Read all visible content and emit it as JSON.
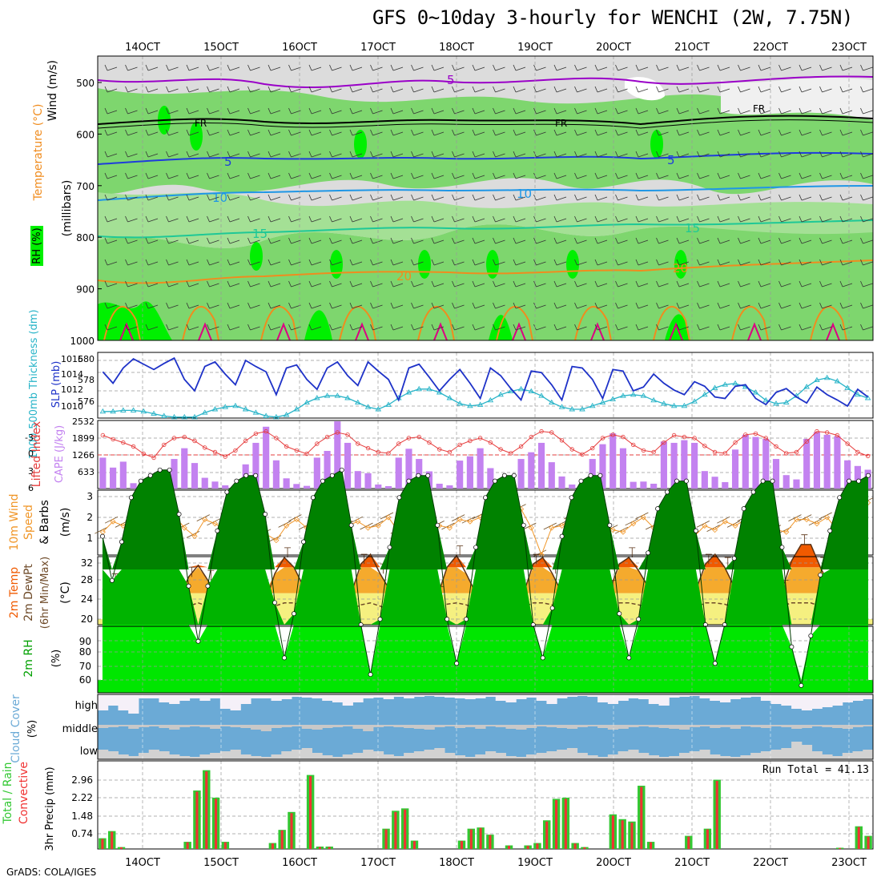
{
  "title": "GFS 0~10day 3-hourly for WENCHI (2W, 7.75N)",
  "credit": "GrADS: COLA/IGES",
  "dates": [
    "14OCT",
    "15OCT",
    "16OCT",
    "17OCT",
    "18OCT",
    "19OCT",
    "20OCT",
    "21OCT",
    "22OCT",
    "23OCT"
  ],
  "colors": {
    "rh_light": "#c8c8c8",
    "rh_mid": "#7ed66e",
    "rh_high": "#00f000",
    "temp_purple": "#9a00c8",
    "temp_blue": "#1e3cdc",
    "temp_cyan": "#1e96e6",
    "temp_teal": "#1ec896",
    "temp_orange": "#f08c1e",
    "temp_magenta": "#dc0082",
    "slp": "#1e32c8",
    "thick": "#28b4c8",
    "cape": "#c382f0",
    "li": "#e63c3c",
    "wind10": "#f09628",
    "temp_dark": "#f05a00",
    "rh_dark": "#008200",
    "cloud": "#6baad6",
    "precip_total": "#32c832",
    "precip_conv": "#f03232"
  },
  "panels": {
    "upper": {
      "ylabel_wind": "Wind (m/s)",
      "ylabel_temp": "Temperature (°C)",
      "ylabel_rh": "RH (%)",
      "ylabel_mb": "(millibars)",
      "levels": [
        "500",
        "600",
        "700",
        "800",
        "900",
        "1000"
      ],
      "labels": {
        "fr": "FR",
        "t5": "5",
        "t10": "10",
        "t15": "15",
        "t20": "20"
      }
    },
    "slp": {
      "label_thick": "1000-500mb Thickness (dm)",
      "label_slp": "SLP (mb)",
      "left_ticks": [
        "580",
        "578",
        "576"
      ],
      "right_ticks": [
        "1016",
        "1014",
        "1012",
        "1010"
      ]
    },
    "cape": {
      "label_li": "Lifted Index",
      "label_cape": "CAPE (J/kg)",
      "left_ticks": [
        "-3",
        "0",
        "3",
        "6"
      ],
      "right_ticks": [
        "2532",
        "1899",
        "1266",
        "633"
      ]
    },
    "wind10": {
      "label1": "10m Wind",
      "label2": "Speed",
      "label3": "& Barbs",
      "units": "(m/s)",
      "ticks": [
        "3",
        "2",
        "1"
      ]
    },
    "temp2m": {
      "label1": "2m Temp",
      "label2": "2m DewPt",
      "label3": "(6hr Min/Max)",
      "units": "(°C)",
      "ticks": [
        "32",
        "28",
        "24",
        "20"
      ]
    },
    "rh2m": {
      "label": "2m RH",
      "units": "(%)",
      "ticks": [
        "90",
        "80",
        "70",
        "60"
      ]
    },
    "cloud": {
      "label": "Cloud Cover",
      "units": "(%)",
      "levels": [
        "high",
        "middle",
        "low"
      ]
    },
    "precip": {
      "label_total": "Total / Rain",
      "label_conv": "Convective",
      "label_units": "3hr Precip (mm)",
      "ticks": [
        "2.96",
        "2.22",
        "1.48",
        "0.74"
      ],
      "run_total": "Run Total = 41.13"
    }
  },
  "chart_data": [
    {
      "type": "line",
      "panel": "slp",
      "title": "",
      "series": [
        {
          "name": "SLP (mb)",
          "x": "3-hourly from 13OCT 18Z",
          "values": [
            1014.5,
            1013.0,
            1015.0,
            1016.2,
            1015.5,
            1014.8,
            1015.6,
            1016.3,
            1013.5,
            1012.0,
            1015.2,
            1015.8,
            1014.2,
            1012.8,
            1016.0,
            1015.2,
            1014.5,
            1011.5,
            1015.0,
            1015.4,
            1013.5,
            1012.2,
            1015.0,
            1015.8,
            1014.0,
            1012.7,
            1015.8,
            1014.6,
            1013.5,
            1010.8,
            1015.0,
            1015.5,
            1013.8,
            1012.0,
            1013.5,
            1014.8,
            1013.0,
            1011.0,
            1015.0,
            1014.0,
            1012.3,
            1010.8,
            1014.6,
            1014.4,
            1012.8,
            1010.8,
            1015.2,
            1015.0,
            1013.5,
            1011.0,
            1014.8,
            1014.6,
            1012.0,
            1012.5,
            1014.2,
            1013.0,
            1012.1,
            1011.5,
            1013.2,
            1012.6,
            1011.2,
            1011.0,
            1012.6,
            1012.8,
            1011.0,
            1010.2,
            1011.8,
            1012.3,
            1011.2,
            1010.4,
            1012.5,
            1011.5,
            1010.8,
            1010.0,
            1012.2,
            1011.2
          ]
        },
        {
          "name": "1000-500mb Thickness (dm)",
          "x": "3-hourly from 13OCT 18Z",
          "values": [
            575.8,
            575.8,
            575.9,
            575.9,
            575.8,
            575.6,
            575.4,
            575.3,
            575.3,
            575.3,
            575.7,
            576.0,
            576.2,
            576.3,
            576.0,
            575.7,
            575.4,
            575.3,
            575.5,
            576.0,
            576.6,
            577.0,
            577.2,
            577.2,
            577.0,
            576.6,
            576.2,
            576.0,
            576.4,
            577.0,
            577.5,
            577.8,
            577.8,
            577.5,
            577.0,
            576.5,
            576.3,
            576.4,
            576.8,
            577.3,
            577.6,
            577.8,
            577.6,
            577.2,
            576.6,
            576.2,
            576.0,
            576.0,
            576.3,
            576.6,
            576.9,
            577.2,
            577.3,
            577.2,
            576.8,
            576.5,
            576.3,
            576.3,
            576.7,
            577.3,
            577.9,
            578.2,
            578.3,
            578.0,
            577.5,
            576.8,
            576.5,
            576.6,
            577.2,
            578.0,
            578.6,
            578.8,
            578.5,
            577.9,
            577.3,
            577.0
          ]
        }
      ]
    },
    {
      "type": "bar",
      "panel": "cape",
      "title": "",
      "series": [
        {
          "name": "CAPE (J/kg)",
          "values": [
            1150,
            780,
            1000,
            200,
            100,
            40,
            180,
            1100,
            1500,
            950,
            400,
            260,
            120,
            50,
            900,
            1700,
            2300,
            1050,
            380,
            170,
            100,
            1150,
            1400,
            2500,
            1700,
            650,
            570,
            150,
            90,
            1150,
            1480,
            1100,
            640,
            180,
            120,
            1040,
            1200,
            1500,
            760,
            170,
            70,
            1100,
            1350,
            1700,
            980,
            450,
            150,
            100,
            1100,
            1650,
            2050,
            1500,
            250,
            260,
            180,
            1750,
            1700,
            1800,
            1700,
            650,
            440,
            240,
            1450,
            2000,
            1920,
            1850,
            1100,
            500,
            340,
            1850,
            2100,
            2000,
            1950,
            1050,
            840,
            700
          ]
        },
        {
          "name": "Lifted Index",
          "values": [
            -3.5,
            -2.8,
            -2.2,
            -1.5,
            -0.2,
            0.5,
            -1.8,
            -3.0,
            -3.2,
            -2.5,
            -1.3,
            -0.5,
            0.3,
            -0.8,
            -2.5,
            -3.8,
            -4.2,
            -3.0,
            -1.5,
            -0.8,
            -0.2,
            -2.0,
            -3.2,
            -4.0,
            -3.6,
            -2.0,
            -1.2,
            -0.5,
            -0.3,
            -2.0,
            -3.0,
            -3.2,
            -2.2,
            -1.0,
            -0.5,
            -1.8,
            -2.5,
            -3.0,
            -2.2,
            -1.0,
            -0.3,
            -1.5,
            -3.2,
            -4.2,
            -4.0,
            -2.6,
            -1.0,
            -0.1,
            -1.2,
            -3.0,
            -3.6,
            -3.2,
            -1.8,
            -0.8,
            -0.5,
            -2.2,
            -3.5,
            -3.2,
            -3.0,
            -1.6,
            -0.5,
            -0.3,
            -2.2,
            -3.6,
            -3.8,
            -3.0,
            -1.5,
            -0.3,
            -0.5,
            -2.4,
            -4.2,
            -4.0,
            -3.5,
            -2.0,
            -0.5,
            0.2
          ]
        }
      ]
    },
    {
      "type": "line",
      "panel": "wind10",
      "title": "",
      "series": [
        {
          "name": "10m Wind Speed (m/s)",
          "values": [
            1.3,
            1.8,
            1.6,
            1.9,
            1.8,
            1.5,
            1.7,
            2.1,
            1.5,
            1.1,
            1.9,
            1.7,
            1.4,
            1.8,
            2.3,
            2.0,
            1.2,
            0.9,
            1.6,
            1.9,
            1.5,
            1.4,
            1.8,
            1.4,
            1.6,
            1.8,
            1.5,
            1.6,
            2.0,
            1.3,
            1.9,
            1.8,
            1.2,
            1.6,
            1.5,
            1.9,
            1.8,
            2.0,
            1.7,
            1.6,
            1.9,
            2.4,
            1.5,
            0.2,
            1.5,
            1.6,
            2.0,
            1.4,
            2.5,
            1.8,
            1.4,
            1.3,
            1.7,
            2.0,
            1.5,
            1.6,
            2.9,
            1.6,
            1.1,
            1.6,
            1.4,
            1.8,
            1.6,
            1.9,
            1.2,
            1.7,
            1.4,
            1.3,
            1.9,
            1.9,
            1.7,
            2.0,
            1.4,
            2.2,
            2.6,
            2.7
          ]
        }
      ]
    },
    {
      "type": "area",
      "panel": "temp2m",
      "title": "",
      "series": [
        {
          "name": "2m Temp (°C)",
          "values": [
            24.5,
            25.5,
            24.0,
            22.5,
            22.0,
            21.5,
            21.0,
            20.2,
            23.0,
            26.5,
            28.3,
            26.0,
            23.5,
            22.3,
            21.8,
            21.5,
            21.0,
            22.5,
            27.0,
            29.5,
            28.0,
            25.0,
            23.0,
            22.0,
            21.5,
            21.0,
            24.0,
            28.5,
            30.0,
            27.0,
            24.5,
            23.0,
            22.5,
            22.0,
            21.5,
            23.5,
            28.0,
            29.8,
            27.0,
            24.0,
            23.0,
            22.5,
            22.0,
            21.5,
            24.0,
            28.5,
            29.5,
            27.0,
            24.0,
            23.0,
            22.5,
            22.0,
            22.0,
            24.5,
            28.5,
            29.5,
            27.5,
            25.0,
            23.5,
            22.8,
            22.0,
            21.5,
            24.5,
            28.5,
            30.0,
            28.0,
            25.0,
            23.5,
            22.5,
            22.0,
            22.0,
            24.5,
            29.0,
            31.5,
            31.5,
            28.0,
            25.0,
            23.5,
            22.5,
            22.0,
            21.5
          ]
        },
        {
          "name": "2m DewPt (°C)",
          "values": [
            22.0,
            22.3,
            22.0,
            21.5,
            21.0,
            20.8,
            20.5,
            20.0,
            20.8,
            22.0,
            22.5,
            22.0,
            21.5,
            21.0,
            20.7,
            20.5,
            20.5,
            20.8,
            22.0,
            22.5,
            22.5,
            22.0,
            21.5,
            21.0,
            20.8,
            20.5,
            21.5,
            22.2,
            22.5,
            22.0,
            21.5,
            21.2,
            21.0,
            20.8,
            20.8,
            21.5,
            22.3,
            22.5,
            22.2,
            21.6,
            21.3,
            21.0,
            21.0,
            21.0,
            21.8,
            22.5,
            22.5,
            22.2,
            21.8,
            21.5,
            21.2,
            21.0,
            21.0,
            21.8,
            22.5,
            22.5,
            22.2,
            21.8,
            21.5,
            21.2,
            21.0,
            21.0,
            21.8,
            22.5,
            22.5,
            22.3,
            21.8,
            21.5,
            21.2,
            21.0,
            21.0,
            22.0,
            22.5,
            22.5,
            22.5,
            22.0,
            21.8,
            21.5,
            21.2,
            21.0,
            21.0
          ]
        }
      ]
    },
    {
      "type": "area",
      "panel": "rh2m",
      "title": "",
      "series": [
        {
          "name": "2m RH (%)",
          "values": [
            86,
            78,
            85,
            93,
            96,
            97,
            98,
            98,
            90,
            77,
            67,
            77,
            87,
            94,
            96,
            97,
            97,
            90,
            74,
            64,
            72,
            85,
            93,
            96,
            97,
            98,
            88,
            70,
            61,
            71,
            84,
            93,
            96,
            97,
            97,
            88,
            71,
            63,
            71,
            84,
            93,
            96,
            97,
            97,
            88,
            70,
            64,
            73,
            86,
            93,
            96,
            97,
            97,
            88,
            72,
            64,
            71,
            83,
            91,
            94,
            96,
            96,
            87,
            70,
            63,
            70,
            82,
            91,
            94,
            96,
            96,
            84,
            66,
            59,
            68,
            79,
            87,
            93,
            96,
            96,
            97
          ]
        }
      ]
    },
    {
      "type": "bar",
      "panel": "precip",
      "title": "",
      "series": [
        {
          "name": "Total (mm)",
          "values": [
            0.45,
            0.75,
            0.08,
            0,
            0,
            0,
            0,
            0,
            0,
            0.3,
            2.45,
            3.3,
            2.15,
            0.3,
            0,
            0,
            0,
            0,
            0.25,
            0.8,
            1.55,
            0,
            3.1,
            0.1,
            0.1,
            0,
            0,
            0,
            0,
            0,
            0.85,
            1.6,
            1.7,
            0.35,
            0,
            0,
            0,
            0,
            0.35,
            0.85,
            0.9,
            0.6,
            0,
            0.15,
            0,
            0.15,
            0.25,
            1.2,
            2.1,
            2.15,
            0.25,
            0.08,
            0,
            0,
            1.45,
            1.25,
            1.15,
            2.65,
            0.3,
            0,
            0,
            0,
            0.55,
            0,
            0.85,
            2.9,
            0,
            0,
            0,
            0,
            0,
            0,
            0,
            0,
            0,
            0,
            0,
            0,
            0.05,
            0,
            0.95,
            0.55
          ]
        },
        {
          "name": "Convective (mm)",
          "values": [
            0.42,
            0.72,
            0.07,
            0,
            0,
            0,
            0,
            0,
            0,
            0.28,
            2.4,
            3.25,
            2.1,
            0.28,
            0,
            0,
            0,
            0,
            0.23,
            0.78,
            1.5,
            0,
            3.05,
            0.08,
            0.08,
            0,
            0,
            0,
            0,
            0,
            0.82,
            1.55,
            1.65,
            0.33,
            0,
            0,
            0,
            0,
            0.33,
            0.82,
            0.88,
            0.58,
            0,
            0.13,
            0,
            0.13,
            0.23,
            1.15,
            2.05,
            2.1,
            0.23,
            0.07,
            0,
            0,
            1.4,
            1.2,
            1.1,
            2.6,
            0.28,
            0,
            0,
            0,
            0.52,
            0,
            0.82,
            2.85,
            0,
            0,
            0,
            0,
            0,
            0,
            0,
            0,
            0,
            0,
            0,
            0,
            0.04,
            0,
            0.92,
            0.52
          ]
        }
      ]
    }
  ]
}
